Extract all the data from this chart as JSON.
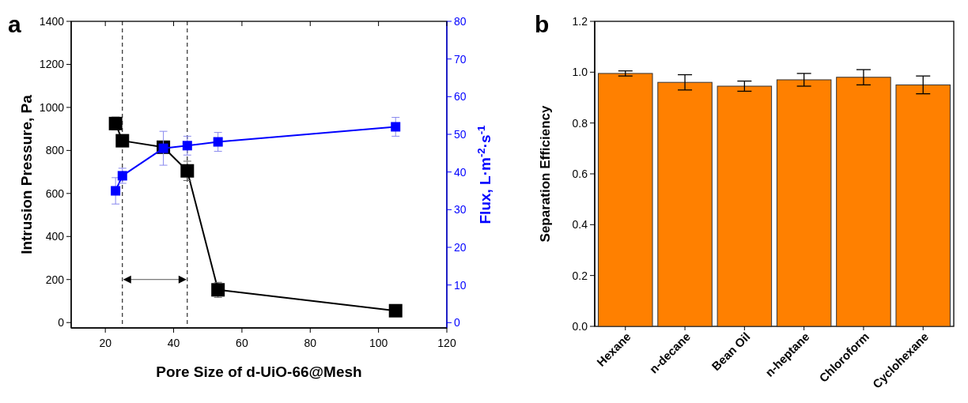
{
  "chart_data": [
    {
      "type": "line",
      "title": "a",
      "xlabel": "Pore Size of d-UiO-66@Mesh",
      "ylabel": "Intrusion Pressure, Pa",
      "y2label": "Flux, L·m$^{-2}$·s$^{-1}$",
      "x": [
        23,
        25,
        37,
        44,
        53,
        105
      ],
      "series": [
        {
          "color": "#000000",
          "values": [
            925,
            845,
            815,
            705,
            152,
            55
          ],
          "errors": [
            30,
            25,
            null,
            45,
            35,
            null
          ]
        },
        {
          "color": "#0000ff",
          "axis": "y2",
          "values": [
            35,
            39,
            46.3,
            47,
            48,
            52
          ],
          "errors": [
            3.5,
            2,
            4.5,
            2.5,
            2.5,
            2.5
          ]
        }
      ],
      "xlim": [
        10,
        120
      ],
      "xticks": [
        20,
        40,
        60,
        80,
        100,
        120
      ],
      "ylim": [
        -25,
        1400
      ],
      "yticks": [
        0,
        200,
        400,
        600,
        800,
        1000,
        1200,
        1400
      ],
      "y2lim": [
        -1.4,
        80
      ],
      "y2ticks": [
        0,
        10,
        20,
        30,
        40,
        50,
        60,
        70,
        80
      ],
      "ref_lines": [
        {
          "axis": "x",
          "value": 25,
          "line_style": "dashed",
          "color": "#000000"
        },
        {
          "axis": "x",
          "value": 44,
          "line_style": "dashed",
          "color": "#000000"
        }
      ],
      "marker": "square",
      "grid": false
    },
    {
      "type": "bar",
      "title": "b",
      "ylabel": "Separation Efficiency",
      "categories": [
        "Hexane",
        "n-decane",
        "Bean Oil",
        "n-heptane",
        "Chloroform",
        "Cyclohexane"
      ],
      "values": [
        0.995,
        0.96,
        0.945,
        0.97,
        0.98,
        0.95
      ],
      "errors": [
        0.01,
        0.03,
        0.02,
        0.025,
        0.03,
        0.035
      ],
      "color": "#ff8000",
      "ylim": [
        0,
        1.2
      ],
      "yticks": [
        {
          "value": 0,
          "label": "0.0"
        },
        0.2,
        0.4,
        0.6,
        0.8,
        {
          "value": 1,
          "label": "1.0"
        },
        1.2
      ],
      "grid": false
    }
  ]
}
